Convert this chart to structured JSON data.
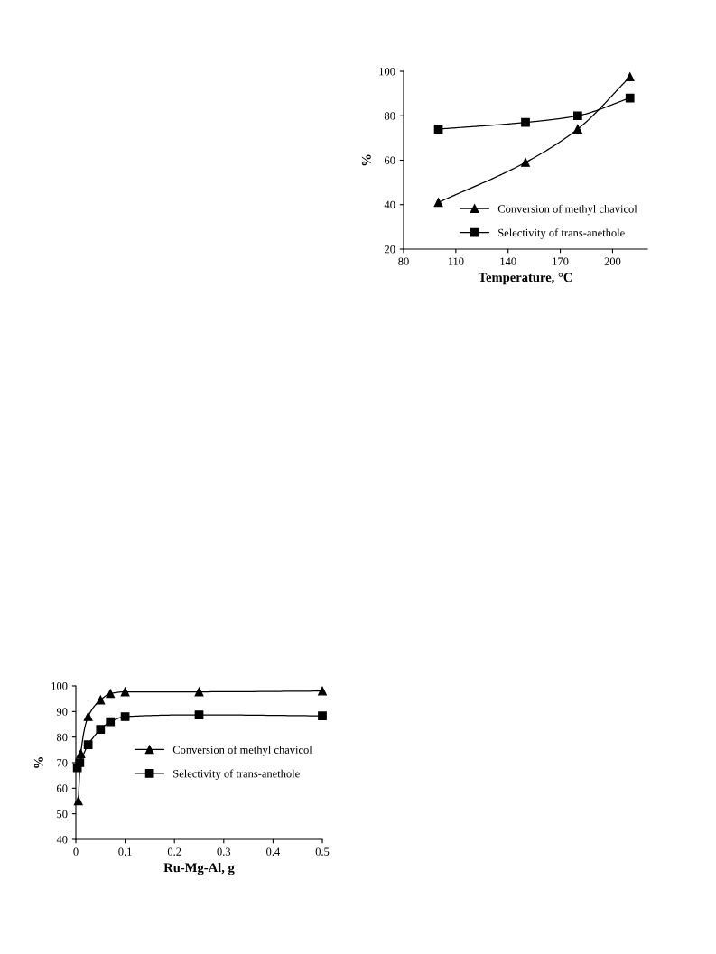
{
  "chart_data": [
    {
      "type": "line",
      "xlabel": "Temperature, °C",
      "ylabel": "%",
      "xlim": [
        80,
        220
      ],
      "xticks": [
        80,
        110,
        140,
        170,
        200
      ],
      "ylim": [
        20,
        100
      ],
      "yticks": [
        20,
        40,
        60,
        80,
        100
      ],
      "legend": "bottom right",
      "grid": false,
      "series": [
        {
          "name": "Conversion of methyl chavicol",
          "color": "#000000",
          "marker": "triangle",
          "x": [
            100,
            150,
            180,
            210
          ],
          "values": [
            41,
            59,
            74,
            97.5
          ]
        },
        {
          "name": "Selectivity of trans-anethole",
          "color": "#000000",
          "marker": "square",
          "x": [
            100,
            150,
            180,
            210
          ],
          "values": [
            74,
            77,
            80,
            88
          ]
        }
      ]
    },
    {
      "type": "line",
      "xlabel": "Ru-Mg-Al, g",
      "ylabel": "%",
      "xlim": [
        0,
        0.5
      ],
      "xticks": [
        0,
        0.1,
        0.2,
        0.3,
        0.4,
        0.5
      ],
      "ylim": [
        40,
        100
      ],
      "yticks": [
        40,
        50,
        60,
        70,
        80,
        90,
        100
      ],
      "legend": "right",
      "grid": false,
      "series": [
        {
          "name": "Conversion of methyl chavicol",
          "color": "#000000",
          "marker": "triangle",
          "x": [
            0.005,
            0.01,
            0.025,
            0.05,
            0.07,
            0.1,
            0.25,
            0.5
          ],
          "values": [
            55,
            73.5,
            88,
            94.5,
            97,
            97.7,
            97.7,
            98
          ]
        },
        {
          "name": "Selectivity of trans-anethole",
          "color": "#000000",
          "marker": "square",
          "x": [
            0.003,
            0.008,
            0.025,
            0.05,
            0.07,
            0.1,
            0.25,
            0.5
          ],
          "values": [
            68,
            70,
            77,
            83,
            86,
            88,
            88.7,
            88.3
          ]
        }
      ]
    }
  ]
}
